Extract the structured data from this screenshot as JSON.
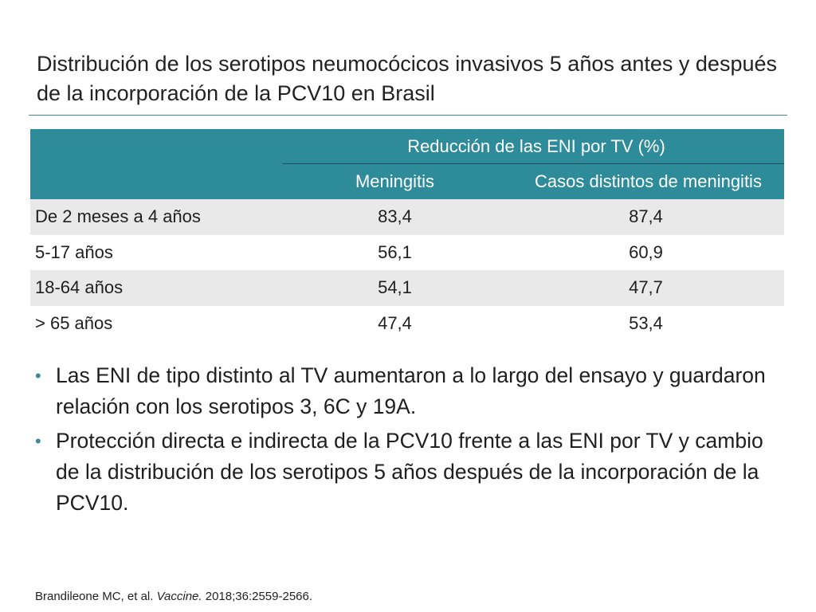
{
  "slide": {
    "title": "Distribución de los serotipos neumocócicos invasivos 5 años antes y después de la incorporación de la PCV10 en Brasil"
  },
  "table": {
    "group_header": "Reducción de las ENI por TV (%)",
    "columns": [
      "Meningitis",
      "Casos distintos de meningitis"
    ],
    "rows": [
      {
        "age": "De 2 meses a 4 años",
        "meningitis": "83,4",
        "non_meningitis": "87,4"
      },
      {
        "age": "5-17 años",
        "meningitis": "56,1",
        "non_meningitis": "60,9"
      },
      {
        "age": "18-64 años",
        "meningitis": "54,1",
        "non_meningitis": "47,7"
      },
      {
        "age": "> 65 años",
        "meningitis": "47,4",
        "non_meningitis": "53,4"
      }
    ]
  },
  "bullets": [
    "Las ENI de tipo distinto al TV aumentaron a lo largo del ensayo y guardaron relación con los serotipos 3, 6C y 19A.",
    "Protección directa e indirecta de la PCV10 frente a las ENI por TV y cambio de la distribución de los serotipos 5 años después de la incorporación de la PCV10."
  ],
  "bullet_symbol": "•",
  "reference": {
    "authors": "Brandileone MC, et al. ",
    "journal": "Vaccine.",
    "citation": " 2018;36:2559-2566."
  },
  "colors": {
    "header_teal": "#2e8b99",
    "stripe_gray": "#e9e9e9",
    "rule_teal": "#3b8a96"
  }
}
